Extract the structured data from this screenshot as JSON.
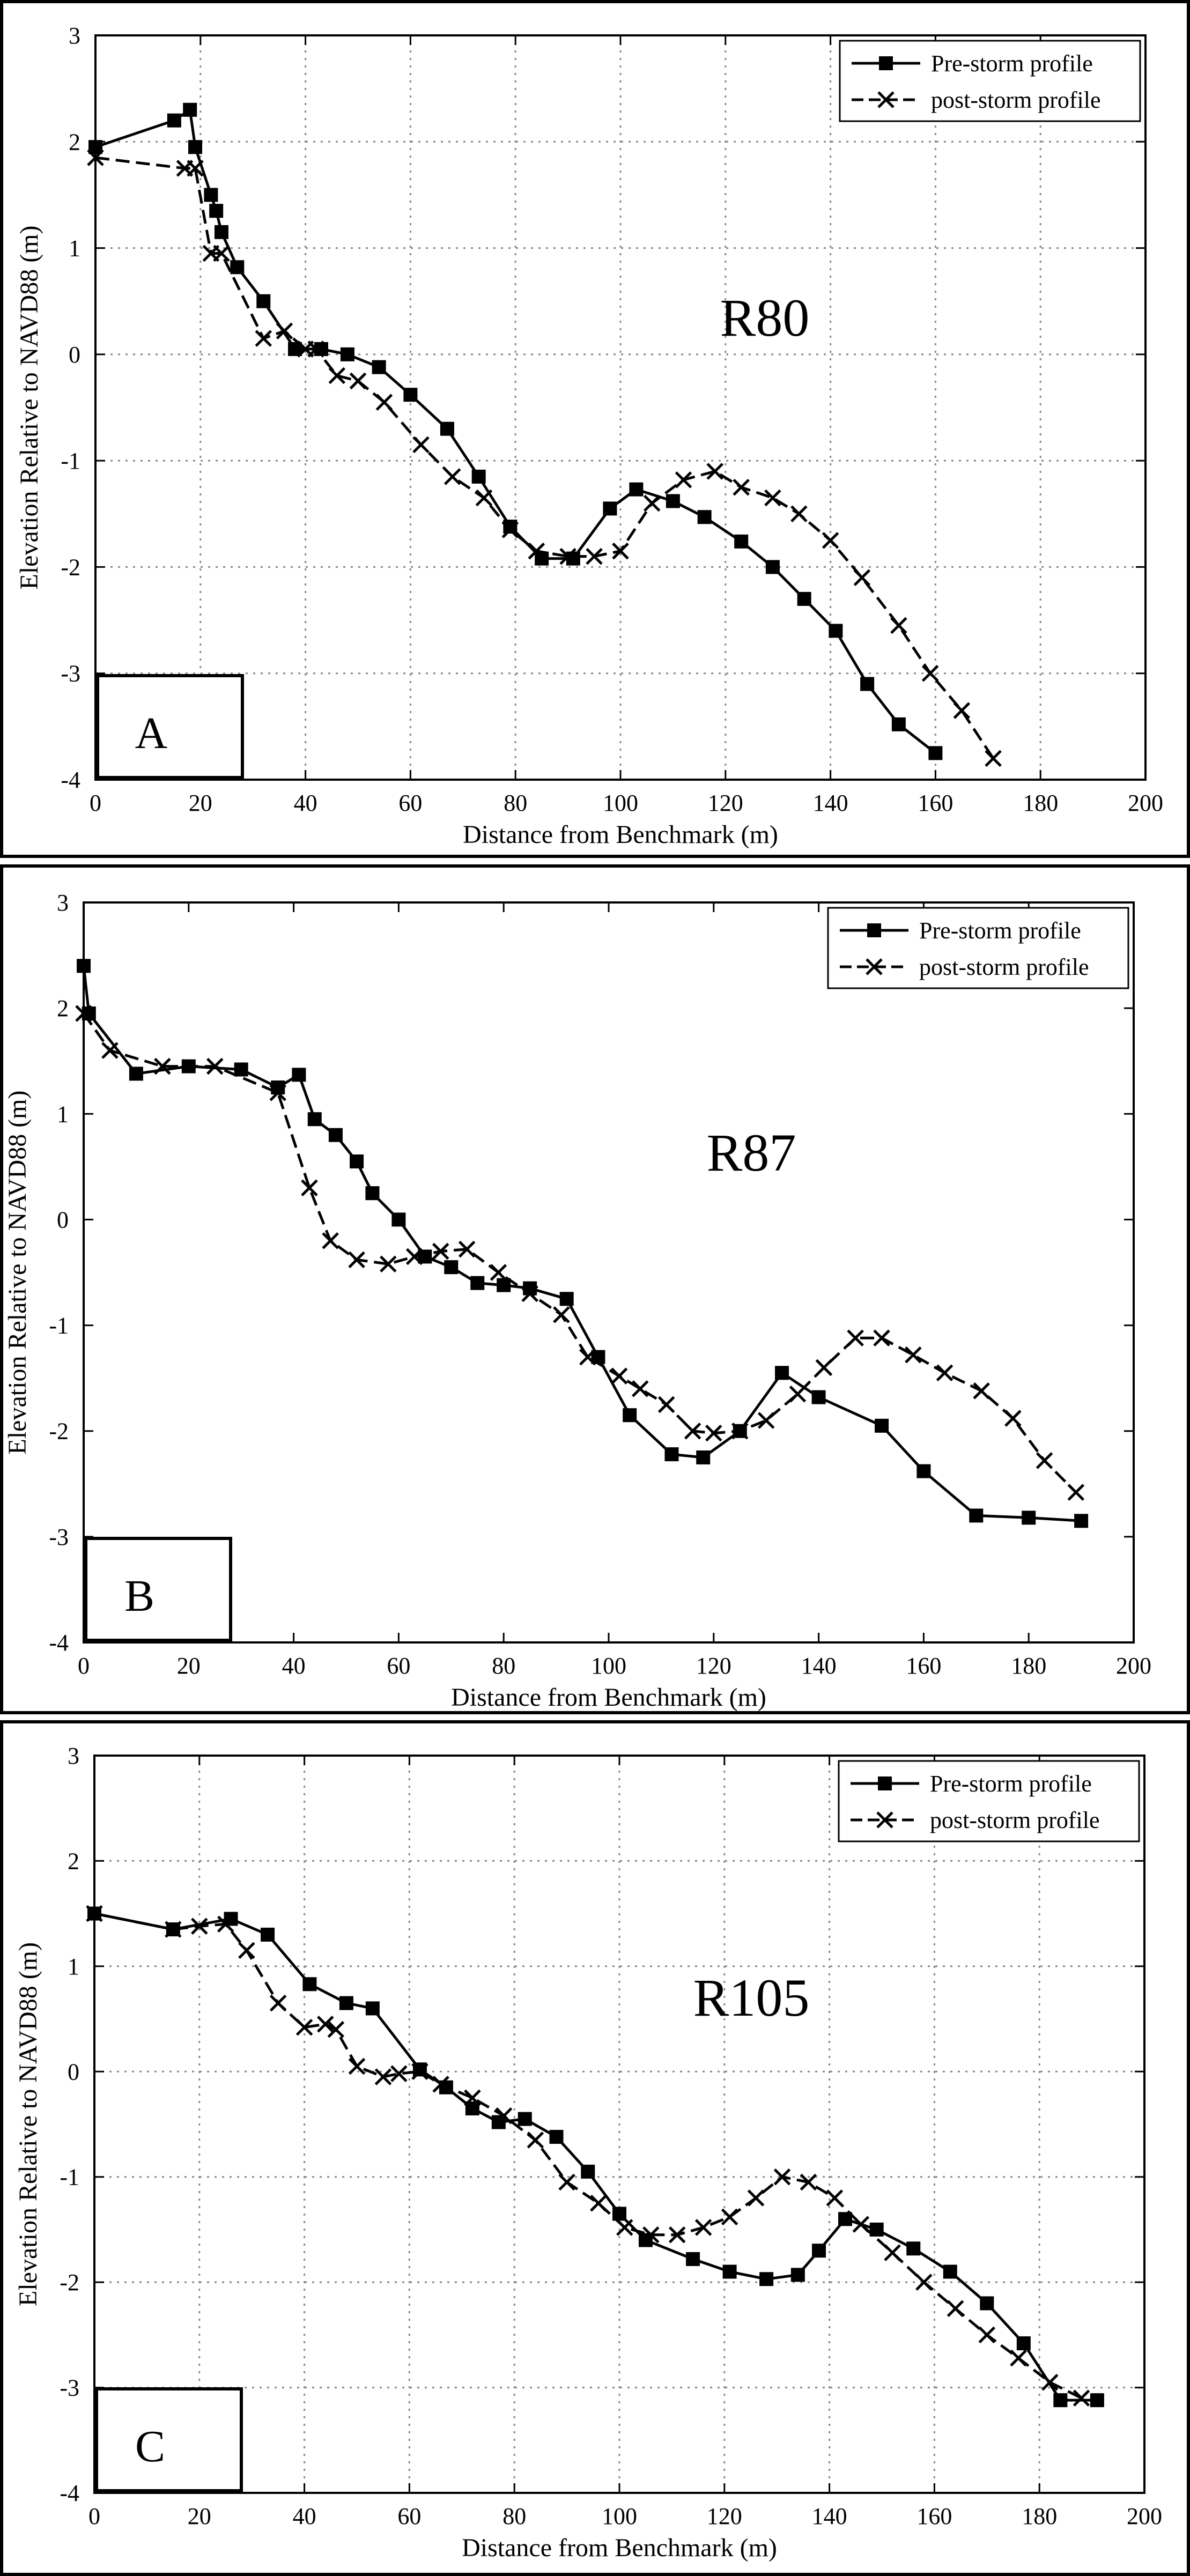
{
  "colors": {
    "line": "#000000",
    "grid": "#888888",
    "background": "#ffffff"
  },
  "chart_data": [
    {
      "type": "line",
      "panel_letter": "A",
      "profile_label": "R80",
      "xlabel": "Distance from Benchmark (m)",
      "ylabel": "Elevation Relative to NAVD88 (m)",
      "xlim": [
        0,
        200
      ],
      "ylim": [
        -4,
        3
      ],
      "xticks": [
        "0",
        "20",
        "40",
        "60",
        "80",
        "100",
        "120",
        "140",
        "160",
        "180",
        "200"
      ],
      "yticks": [
        "-4",
        "-3",
        "-2",
        "-1",
        "0",
        "1",
        "2",
        "3"
      ],
      "grid": true,
      "legend_position": "top-right",
      "series": [
        {
          "name": "Pre-storm profile",
          "marker": "square",
          "dash": "solid",
          "x": [
            0,
            15,
            18,
            19,
            22,
            23,
            24,
            27,
            32,
            38,
            43,
            48,
            54,
            60,
            67,
            73,
            79,
            85,
            91,
            98,
            103,
            110,
            116,
            123,
            129,
            135,
            141,
            147,
            153,
            160
          ],
          "y": [
            1.95,
            2.2,
            2.3,
            1.95,
            1.5,
            1.35,
            1.15,
            0.82,
            0.5,
            0.05,
            0.05,
            0.0,
            -0.12,
            -0.38,
            -0.7,
            -1.15,
            -1.62,
            -1.92,
            -1.92,
            -1.45,
            -1.27,
            -1.38,
            -1.53,
            -1.76,
            -2.0,
            -2.3,
            -2.6,
            -3.1,
            -3.48,
            -3.75
          ]
        },
        {
          "name": "post-storm profile",
          "marker": "x",
          "dash": "dashed",
          "x": [
            0,
            17,
            19,
            22,
            24,
            32,
            36,
            40,
            42,
            46,
            50,
            55,
            62,
            68,
            74,
            79,
            84,
            90,
            95,
            100,
            106,
            112,
            118,
            123,
            129,
            134,
            140,
            146,
            153,
            159,
            165,
            171
          ],
          "y": [
            1.85,
            1.75,
            1.75,
            0.95,
            0.95,
            0.15,
            0.22,
            0.05,
            0.05,
            -0.2,
            -0.25,
            -0.45,
            -0.85,
            -1.15,
            -1.35,
            -1.65,
            -1.85,
            -1.9,
            -1.9,
            -1.85,
            -1.4,
            -1.18,
            -1.1,
            -1.25,
            -1.35,
            -1.5,
            -1.75,
            -2.1,
            -2.55,
            -3.0,
            -3.35,
            -3.8
          ]
        }
      ]
    },
    {
      "type": "line",
      "panel_letter": "B",
      "profile_label": "R87",
      "xlabel": "Distance from Benchmark (m)",
      "ylabel": "Elevation Relative to NAVD88 (m)",
      "xlim": [
        0,
        200
      ],
      "ylim": [
        -4,
        3
      ],
      "xticks": [
        "0",
        "20",
        "40",
        "60",
        "80",
        "100",
        "120",
        "140",
        "160",
        "180",
        "200"
      ],
      "yticks": [
        "-4",
        "-3",
        "-2",
        "-1",
        "0",
        "1",
        "2",
        "3"
      ],
      "grid": false,
      "legend_position": "top-right",
      "series": [
        {
          "name": "Pre-storm profile",
          "marker": "square",
          "dash": "solid",
          "x": [
            0,
            1,
            10,
            20,
            30,
            37,
            41,
            44,
            48,
            52,
            55,
            60,
            65,
            70,
            75,
            80,
            85,
            92,
            98,
            104,
            112,
            118,
            125,
            133,
            140,
            152,
            160,
            170,
            180,
            190
          ],
          "y": [
            2.4,
            1.95,
            1.38,
            1.45,
            1.42,
            1.25,
            1.37,
            0.95,
            0.8,
            0.55,
            0.25,
            0.0,
            -0.35,
            -0.45,
            -0.6,
            -0.62,
            -0.65,
            -0.75,
            -1.3,
            -1.85,
            -2.22,
            -2.25,
            -2.0,
            -1.45,
            -1.68,
            -1.95,
            -2.38,
            -2.8,
            -2.82,
            -2.85
          ]
        },
        {
          "name": "post-storm profile",
          "marker": "x",
          "dash": "dashed",
          "x": [
            0,
            5,
            15,
            25,
            37,
            43,
            47,
            52,
            58,
            63,
            68,
            73,
            79,
            85,
            91,
            96,
            102,
            106,
            111,
            116,
            120,
            125,
            130,
            136,
            141,
            147,
            152,
            158,
            164,
            171,
            177,
            183,
            189
          ],
          "y": [
            1.95,
            1.6,
            1.45,
            1.45,
            1.2,
            0.3,
            -0.2,
            -0.38,
            -0.42,
            -0.35,
            -0.3,
            -0.28,
            -0.5,
            -0.7,
            -0.9,
            -1.3,
            -1.48,
            -1.6,
            -1.75,
            -2.0,
            -2.02,
            -2.0,
            -1.9,
            -1.65,
            -1.4,
            -1.12,
            -1.12,
            -1.28,
            -1.45,
            -1.62,
            -1.88,
            -2.28,
            -2.58
          ]
        }
      ]
    },
    {
      "type": "line",
      "panel_letter": "C",
      "profile_label": "R105",
      "xlabel": "Distance from Benchmark (m)",
      "ylabel": "Elevation Relative to NAVD88 (m)",
      "xlim": [
        0,
        200
      ],
      "ylim": [
        -4,
        3
      ],
      "xticks": [
        "0",
        "20",
        "40",
        "60",
        "80",
        "100",
        "120",
        "140",
        "160",
        "180",
        "200"
      ],
      "yticks": [
        "-4",
        "-3",
        "-2",
        "-1",
        "0",
        "1",
        "2",
        "3"
      ],
      "grid": true,
      "legend_position": "top-right",
      "series": [
        {
          "name": "Pre-storm profile",
          "marker": "square",
          "dash": "solid",
          "x": [
            0,
            15,
            26,
            33,
            41,
            48,
            53,
            62,
            67,
            72,
            77,
            82,
            88,
            94,
            100,
            105,
            114,
            121,
            128,
            134,
            138,
            143,
            149,
            156,
            163,
            170,
            177,
            184,
            191
          ],
          "y": [
            1.5,
            1.35,
            1.45,
            1.3,
            0.83,
            0.65,
            0.6,
            0.02,
            -0.15,
            -0.35,
            -0.48,
            -0.45,
            -0.62,
            -0.95,
            -1.35,
            -1.6,
            -1.78,
            -1.9,
            -1.97,
            -1.93,
            -1.7,
            -1.4,
            -1.5,
            -1.68,
            -1.9,
            -2.2,
            -2.58,
            -3.12,
            -3.12
          ]
        },
        {
          "name": "post-storm profile",
          "marker": "x",
          "dash": "dashed",
          "x": [
            0,
            15,
            20,
            25,
            29,
            35,
            40,
            44,
            46,
            50,
            55,
            58,
            62,
            66,
            72,
            78,
            84,
            90,
            96,
            101,
            106,
            111,
            116,
            121,
            126,
            131,
            136,
            141,
            146,
            152,
            158,
            164,
            170,
            176,
            182,
            188
          ],
          "y": [
            1.5,
            1.35,
            1.38,
            1.4,
            1.15,
            0.65,
            0.42,
            0.45,
            0.4,
            0.05,
            -0.05,
            -0.02,
            0.0,
            -0.12,
            -0.25,
            -0.42,
            -0.65,
            -1.05,
            -1.25,
            -1.48,
            -1.55,
            -1.55,
            -1.48,
            -1.38,
            -1.2,
            -1.0,
            -1.05,
            -1.2,
            -1.45,
            -1.72,
            -2.0,
            -2.25,
            -2.5,
            -2.72,
            -2.95,
            -3.1
          ]
        }
      ]
    }
  ]
}
